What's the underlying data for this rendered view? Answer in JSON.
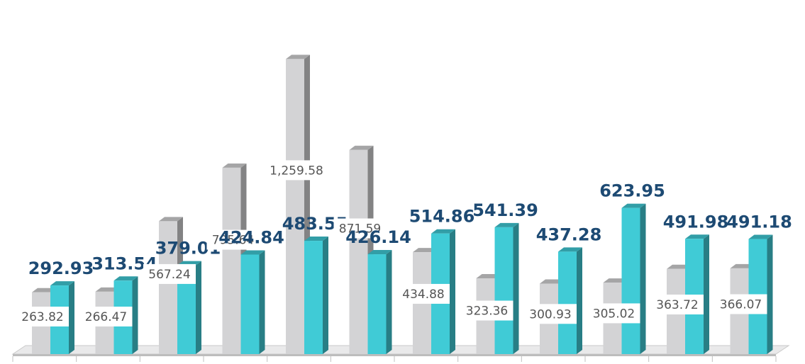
{
  "chart_data": {
    "type": "bar",
    "categories": [
      "",
      "",
      "",
      "",
      "",
      "",
      "",
      "",
      "",
      "",
      "",
      ""
    ],
    "series": [
      {
        "values": [
          263.82,
          266.47,
          567.24,
          795.64,
          1259.58,
          871.59,
          434.88,
          323.36,
          300.93,
          305.02,
          363.72,
          366.07
        ],
        "color": "#d3d3d5"
      },
      {
        "values": [
          292.93,
          313.54,
          379.01,
          424.84,
          483.55,
          426.14,
          514.86,
          541.39,
          437.28,
          623.95,
          491.98,
          491.18
        ],
        "color": "#40cbd6"
      }
    ],
    "data_labels": [
      [
        "263.82",
        "266.47",
        "567.24",
        "795.64",
        "1,259.58",
        "871.59",
        "434.88",
        "323.36",
        "300.93",
        "305.02",
        "363.72",
        "366.07"
      ],
      [
        "292.93",
        "313.54",
        "379.01",
        "424.84",
        "483.55",
        "426.14",
        "514.86",
        "541.39",
        "437.28",
        "623.95",
        "491.98",
        "491.18"
      ]
    ],
    "ylim": [
      0,
      1300
    ],
    "grid": false,
    "legend": "none",
    "style": "3d-clustered-column"
  }
}
